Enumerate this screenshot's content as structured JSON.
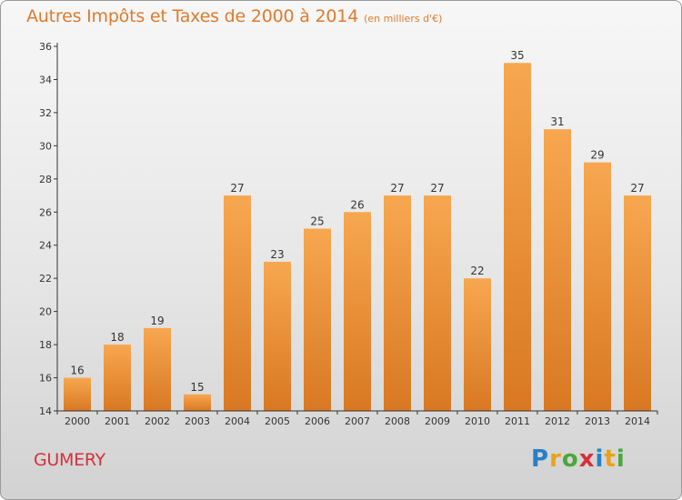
{
  "title": "Autres Impôts et Taxes de 2000 à 2014",
  "unit_label": "(en milliers d'€)",
  "commune": "GUMERY",
  "logo": {
    "text": "Proxiti",
    "letters": [
      {
        "char": "P",
        "color": "#2a7fc4"
      },
      {
        "char": "r",
        "color": "#e8a21c"
      },
      {
        "char": "o",
        "color": "#4aa83a"
      },
      {
        "char": "x",
        "color": "#d6303a"
      },
      {
        "char": "i",
        "color": "#2a7fc4"
      },
      {
        "char": "t",
        "color": "#e8a21c"
      },
      {
        "char": "i",
        "color": "#4aa83a"
      }
    ]
  },
  "colors": {
    "title": "#e07a2b",
    "bar_top": "#f7a750",
    "bar_bottom": "#d97822",
    "commune": "#d6303a",
    "axis": "#333333",
    "grid": "#cccccc"
  },
  "chart_data": {
    "type": "bar",
    "title": "Autres Impôts et Taxes de 2000 à 2014",
    "subtitle": "(en milliers d'€)",
    "xlabel": "",
    "ylabel": "",
    "categories": [
      "2000",
      "2001",
      "2002",
      "2003",
      "2004",
      "2005",
      "2006",
      "2007",
      "2008",
      "2009",
      "2010",
      "2011",
      "2012",
      "2013",
      "2014"
    ],
    "values": [
      16,
      18,
      19,
      15,
      27,
      23,
      25,
      26,
      27,
      27,
      22,
      35,
      31,
      29,
      27
    ],
    "data_labels": [
      "16",
      "18",
      "19",
      "15",
      "27",
      "23",
      "25",
      "26",
      "27",
      "27",
      "22",
      "35",
      "31",
      "29",
      "27"
    ],
    "ylim": [
      14,
      36
    ],
    "yticks": [
      "14",
      "16",
      "18",
      "20",
      "22",
      "24",
      "26",
      "28",
      "30",
      "32",
      "34",
      "36"
    ],
    "grid": false,
    "legend": "none"
  }
}
